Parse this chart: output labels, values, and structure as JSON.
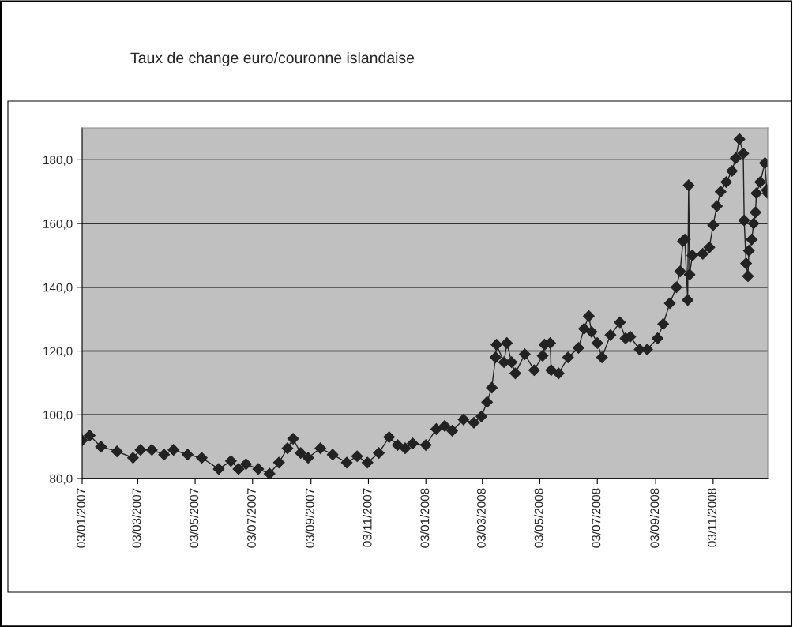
{
  "chart_data": {
    "type": "line",
    "title": "Taux de change euro/couronne islandaise",
    "x": [
      "2007-01-03",
      "2007-01-11",
      "2007-01-23",
      "2007-02-09",
      "2007-02-26",
      "2007-03-06",
      "2007-03-18",
      "2007-03-31",
      "2007-04-10",
      "2007-04-25",
      "2007-05-10",
      "2007-05-28",
      "2007-06-10",
      "2007-06-18",
      "2007-06-26",
      "2007-07-09",
      "2007-07-21",
      "2007-07-31",
      "2007-08-09",
      "2007-08-15",
      "2007-08-23",
      "2007-08-31",
      "2007-09-13",
      "2007-09-26",
      "2007-10-11",
      "2007-10-22",
      "2007-11-02",
      "2007-11-14",
      "2007-11-25",
      "2007-12-04",
      "2007-12-12",
      "2007-12-20",
      "2008-01-03",
      "2008-01-14",
      "2008-01-23",
      "2008-01-31",
      "2008-02-12",
      "2008-02-23",
      "2008-03-02",
      "2008-03-08",
      "2008-03-13",
      "2008-03-17",
      "2008-03-18",
      "2008-03-26",
      "2008-03-29",
      "2008-04-03",
      "2008-04-07",
      "2008-04-17",
      "2008-04-27",
      "2008-05-06",
      "2008-05-08",
      "2008-05-14",
      "2008-05-15",
      "2008-05-23",
      "2008-06-02",
      "2008-06-13",
      "2008-06-19",
      "2008-06-24",
      "2008-06-27",
      "2008-07-03",
      "2008-07-08",
      "2008-07-17",
      "2008-07-27",
      "2008-08-02",
      "2008-08-07",
      "2008-08-17",
      "2008-08-25",
      "2008-09-05",
      "2008-09-11",
      "2008-09-18",
      "2008-09-25",
      "2008-09-29",
      "2008-10-02",
      "2008-10-04",
      "2008-10-07",
      "2008-10-08",
      "2008-10-09",
      "2008-10-12",
      "2008-10-23",
      "2008-10-30",
      "2008-11-03",
      "2008-11-07",
      "2008-11-11",
      "2008-11-17",
      "2008-11-23",
      "2008-11-27",
      "2008-12-01",
      "2008-12-05",
      "2008-12-06",
      "2008-12-08",
      "2008-12-10",
      "2008-12-11",
      "2008-12-14",
      "2008-12-16",
      "2008-12-18",
      "2008-12-19",
      "2008-12-23",
      "2008-12-28",
      "2008-12-30",
      "2008-12-31"
    ],
    "series": [
      {
        "color": "#222222",
        "values": [
          92,
          93.5,
          90,
          88.5,
          86.5,
          89,
          89,
          87.5,
          89,
          87.5,
          86.5,
          83,
          85.5,
          83,
          84.5,
          83,
          81.5,
          85,
          89.5,
          92.5,
          88,
          86.5,
          89.5,
          87.5,
          85,
          87,
          85,
          88,
          93,
          90.5,
          89.5,
          91,
          90.5,
          95.5,
          96.5,
          95,
          98.5,
          97.5,
          99.5,
          104,
          108.5,
          118,
          122,
          116.5,
          122.5,
          116.5,
          113,
          119,
          114,
          118.5,
          122,
          122.5,
          114,
          113,
          118,
          121,
          127,
          131,
          126,
          122.5,
          118,
          125,
          129,
          124,
          124.5,
          120.5,
          120.5,
          124,
          128.5,
          135,
          140,
          145,
          154.5,
          155,
          136,
          172,
          144,
          150,
          150.5,
          152.5,
          159.5,
          165.5,
          170,
          173,
          176.5,
          180.5,
          186.5,
          182,
          161,
          147.5,
          143.5,
          151.5,
          155,
          160,
          163.5,
          169.5,
          173,
          179,
          170.5,
          169.5
        ]
      }
    ],
    "xlim": [
      "2007-01-03",
      "2008-12-31"
    ],
    "xticks": [
      {
        "value": "2007-01-03",
        "label": "03/01/2007"
      },
      {
        "value": "2007-03-03",
        "label": "03/03/2007"
      },
      {
        "value": "2007-05-03",
        "label": "03/05/2007"
      },
      {
        "value": "2007-07-03",
        "label": "03/07/2007"
      },
      {
        "value": "2007-09-03",
        "label": "03/09/2007"
      },
      {
        "value": "2007-11-03",
        "label": "03/11/2007"
      },
      {
        "value": "2008-01-03",
        "label": "03/01/2008"
      },
      {
        "value": "2008-03-03",
        "label": "03/03/2008"
      },
      {
        "value": "2008-05-03",
        "label": "03/05/2008"
      },
      {
        "value": "2008-07-03",
        "label": "03/07/2008"
      },
      {
        "value": "2008-09-03",
        "label": "03/09/2008"
      },
      {
        "value": "2008-11-03",
        "label": "03/11/2008"
      }
    ],
    "ylim": [
      80,
      190
    ],
    "yticks": [
      {
        "value": 80,
        "label": "80,0"
      },
      {
        "value": 100,
        "label": "100,0"
      },
      {
        "value": 120,
        "label": "120,0"
      },
      {
        "value": 140,
        "label": "140,0"
      },
      {
        "value": 160,
        "label": "160,0"
      },
      {
        "value": 180,
        "label": "180,0"
      }
    ],
    "grid": "y",
    "marker": "diamond",
    "line_style": "solid"
  }
}
